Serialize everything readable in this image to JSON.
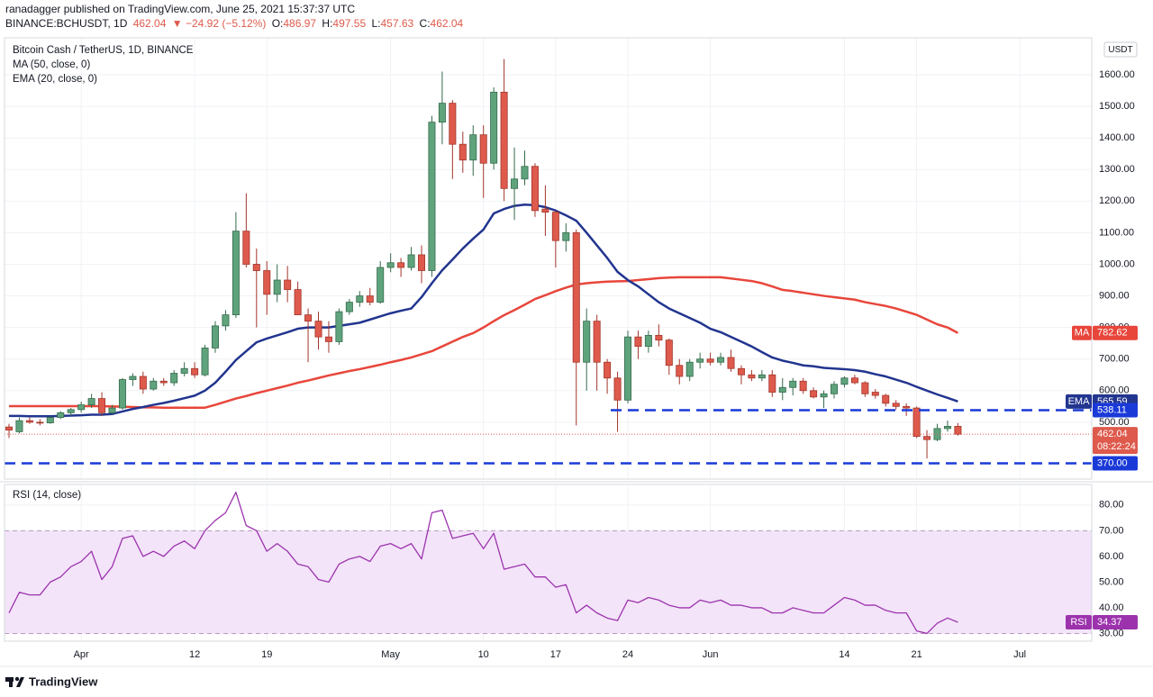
{
  "header": {
    "publisher": "ranadagger published on TradingView.com, June 25, 2021 15:37:37 UTC",
    "symbol": "BINANCE:BCHUSDT, 1D",
    "last": "462.04",
    "change": "▼ −24.92 (−5.12%)",
    "ohlc": [
      [
        "O:",
        "486.97"
      ],
      [
        "H:",
        "497.55"
      ],
      [
        "L:",
        "457.63"
      ],
      [
        "C:",
        "462.04"
      ]
    ]
  },
  "chart_data": [
    {
      "type": "candlestick",
      "title": "Bitcoin Cash / TetherUS, 1D, BINANCE",
      "unit": "USDT",
      "categories": [
        null,
        null,
        null,
        null,
        null,
        null,
        null,
        "Apr",
        null,
        null,
        null,
        null,
        null,
        null,
        null,
        null,
        null,
        null,
        "12",
        null,
        null,
        null,
        null,
        null,
        null,
        "19",
        null,
        null,
        null,
        null,
        null,
        null,
        null,
        null,
        null,
        null,
        null,
        "May",
        null,
        null,
        null,
        null,
        null,
        null,
        null,
        null,
        "10",
        null,
        null,
        null,
        null,
        null,
        null,
        "17",
        null,
        null,
        null,
        null,
        null,
        null,
        "24",
        null,
        null,
        null,
        null,
        null,
        null,
        null,
        "Jun",
        null,
        null,
        null,
        null,
        null,
        null,
        null,
        null,
        null,
        null,
        null,
        null,
        "14",
        null,
        null,
        null,
        null,
        null,
        null,
        "21",
        null,
        null,
        null,
        null,
        null,
        null,
        null,
        null,
        null,
        "Jul",
        null,
        null,
        null,
        null,
        null,
        null
      ],
      "open": [
        485,
        470,
        505,
        500,
        498,
        515,
        530,
        540,
        555,
        575,
        530,
        545,
        635,
        645,
        605,
        630,
        625,
        655,
        670,
        650,
        735,
        805,
        840,
        1105,
        1000,
        980,
        905,
        950,
        920,
        840,
        820,
        770,
        755,
        850,
        880,
        900,
        880,
        990,
        1005,
        990,
        1030,
        980,
        1450,
        1510,
        1380,
        1330,
        1410,
        1320,
        1545,
        1240,
        1270,
        1310,
        1175,
        1165,
        1075,
        1100,
        690,
        820,
        690,
        640,
        570,
        770,
        740,
        775,
        760,
        680,
        645,
        690,
        700,
        690,
        705,
        670,
        650,
        640,
        650,
        595,
        610,
        630,
        600,
        580,
        590,
        620,
        640,
        625,
        595,
        585,
        560,
        550,
        545,
        455,
        445,
        480,
        486.97,
        null,
        null,
        null,
        null,
        null,
        null,
        null,
        null,
        null,
        null,
        null,
        null
      ],
      "high": [
        495,
        515,
        515,
        510,
        520,
        535,
        545,
        565,
        590,
        595,
        555,
        640,
        655,
        660,
        640,
        640,
        665,
        690,
        690,
        745,
        820,
        855,
        1165,
        1225,
        1050,
        1010,
        1000,
        995,
        945,
        860,
        850,
        820,
        860,
        890,
        915,
        925,
        1010,
        1035,
        1020,
        1055,
        1060,
        1470,
        1610,
        1520,
        1420,
        1440,
        1440,
        1560,
        1650,
        1370,
        1360,
        1320,
        1250,
        1170,
        1130,
        1110,
        860,
        840,
        700,
        660,
        790,
        790,
        790,
        810,
        765,
        700,
        700,
        720,
        720,
        720,
        730,
        680,
        665,
        665,
        665,
        640,
        640,
        640,
        610,
        600,
        630,
        645,
        650,
        630,
        605,
        590,
        570,
        560,
        550,
        475,
        495,
        505,
        497.55,
        null,
        null,
        null,
        null,
        null,
        null,
        null,
        null,
        null,
        null,
        null,
        null
      ],
      "low": [
        450,
        465,
        495,
        490,
        495,
        510,
        520,
        530,
        545,
        520,
        525,
        540,
        615,
        590,
        600,
        615,
        615,
        645,
        640,
        645,
        720,
        790,
        830,
        990,
        800,
        840,
        880,
        880,
        840,
        690,
        730,
        720,
        745,
        840,
        865,
        870,
        875,
        975,
        960,
        980,
        940,
        960,
        1380,
        1270,
        1290,
        1280,
        1210,
        1300,
        1200,
        1140,
        1250,
        1150,
        1090,
        990,
        1040,
        490,
        600,
        600,
        590,
        470,
        560,
        700,
        720,
        740,
        650,
        620,
        630,
        670,
        680,
        680,
        660,
        620,
        630,
        630,
        580,
        570,
        585,
        590,
        575,
        545,
        575,
        610,
        620,
        580,
        575,
        550,
        540,
        520,
        450,
        385,
        440,
        470,
        457.63,
        null,
        null,
        null,
        null,
        null,
        null,
        null,
        null,
        null,
        null,
        null,
        null
      ],
      "close": [
        475,
        505,
        500,
        498,
        515,
        530,
        540,
        555,
        575,
        530,
        545,
        635,
        645,
        605,
        630,
        625,
        655,
        670,
        650,
        735,
        805,
        840,
        1105,
        1000,
        980,
        905,
        950,
        920,
        840,
        820,
        770,
        755,
        850,
        880,
        900,
        880,
        990,
        1005,
        990,
        1030,
        980,
        1450,
        1510,
        1380,
        1330,
        1410,
        1320,
        1545,
        1240,
        1270,
        1310,
        1170,
        1165,
        1075,
        1100,
        690,
        820,
        690,
        640,
        570,
        770,
        740,
        775,
        760,
        680,
        645,
        690,
        700,
        690,
        705,
        670,
        650,
        640,
        650,
        595,
        610,
        630,
        600,
        580,
        590,
        620,
        640,
        625,
        590,
        585,
        560,
        550,
        545,
        455,
        445,
        480,
        487,
        462.04,
        null,
        null,
        null,
        null,
        null,
        null,
        null,
        null,
        null,
        null,
        null,
        null
      ],
      "up_color": "#5fa37d",
      "up_border": "#356b4c",
      "down_color": "#de5a4c",
      "down_border": "#a3362b",
      "series": [
        {
          "name": "MA (50, close, 0)",
          "tag": "MA",
          "color": "#e8463b",
          "values": [
            551,
            551,
            551,
            551,
            551,
            551,
            551,
            551,
            551,
            551,
            550,
            549,
            548,
            547,
            547,
            546,
            546,
            546,
            546,
            546,
            555,
            565,
            575,
            583,
            592,
            600,
            608,
            616,
            625,
            632,
            640,
            648,
            655,
            662,
            668,
            675,
            682,
            690,
            697,
            705,
            715,
            725,
            740,
            755,
            770,
            782,
            800,
            820,
            839,
            855,
            872,
            890,
            902,
            915,
            926,
            936,
            940,
            943,
            945,
            946,
            947,
            950,
            953,
            956,
            958,
            959,
            959,
            959,
            959,
            959,
            955,
            951,
            947,
            940,
            930,
            919,
            915,
            910,
            905,
            900,
            896,
            892,
            888,
            880,
            874,
            868,
            860,
            850,
            840,
            825,
            810,
            800,
            782.62,
            null,
            null,
            null,
            null,
            null,
            null,
            null,
            null,
            null,
            null,
            null,
            null
          ]
        },
        {
          "name": "EMA (20, close, 0)",
          "tag": "EMA",
          "color": "#22358f",
          "values": [
            520,
            520,
            519,
            519,
            519,
            520,
            521,
            522,
            524,
            524,
            526,
            534,
            542,
            548,
            555,
            561,
            568,
            576,
            584,
            600,
            625,
            660,
            697,
            725,
            753,
            765,
            775,
            785,
            796,
            800,
            800,
            800,
            805,
            810,
            815,
            825,
            835,
            845,
            853,
            860,
            896,
            940,
            981,
            1015,
            1050,
            1081,
            1110,
            1161,
            1175,
            1185,
            1189,
            1187,
            1181,
            1170,
            1155,
            1138,
            1100,
            1060,
            1020,
            976,
            950,
            930,
            905,
            880,
            860,
            845,
            830,
            815,
            796,
            785,
            770,
            755,
            740,
            722,
            705,
            695,
            688,
            680,
            677,
            672,
            670,
            668,
            665,
            660,
            652,
            645,
            635,
            625,
            612,
            600,
            588,
            577,
            565.59,
            null,
            null,
            null,
            null,
            null,
            null,
            null,
            null,
            null,
            null,
            null,
            null
          ]
        }
      ],
      "levels": [
        538.11,
        {
          "value": 370,
          "label": "370.00"
        }
      ],
      "level_color": "#1a3ad8",
      "price_line_color": "#de5a4c",
      "countdown": "08:22:24",
      "ylim": [
        320,
        1717
      ],
      "yticks": [
        {
          "value": 500,
          "label": "500.00"
        },
        {
          "value": 600,
          "label": "600.00"
        },
        {
          "value": 700,
          "label": "700.00"
        },
        {
          "value": 800,
          "label": "800.00"
        },
        {
          "value": 900,
          "label": "900.00"
        },
        {
          "value": 1000,
          "label": "1000.00"
        },
        {
          "value": 1100,
          "label": "1100.00"
        },
        {
          "value": 1200,
          "label": "1200.00"
        },
        {
          "value": 1300,
          "label": "1300.00"
        },
        {
          "value": 1400,
          "label": "1400.00"
        },
        {
          "value": 1500,
          "label": "1500.00"
        },
        {
          "value": 1600,
          "label": "1600.00"
        }
      ],
      "grid": true
    },
    {
      "type": "line",
      "title": "RSI (14, close)",
      "tag": "RSI",
      "color": "#9c33ad",
      "values": [
        38,
        46,
        45,
        45,
        50,
        52,
        56,
        58,
        62,
        51,
        56,
        67,
        68,
        60,
        62,
        60,
        64,
        66,
        63,
        70,
        74,
        77,
        85,
        72,
        70,
        62,
        65,
        62,
        57,
        56,
        51,
        50,
        57,
        59,
        60,
        58,
        64,
        65,
        63,
        65,
        59,
        77,
        78,
        67,
        68,
        69,
        63,
        69,
        55,
        56,
        57,
        52,
        52,
        48,
        49,
        38,
        41,
        38,
        36,
        35,
        43,
        42,
        44,
        43,
        41,
        40,
        40,
        43,
        42,
        43,
        41,
        41,
        40,
        40,
        38,
        38,
        40,
        39,
        38,
        38,
        41,
        44,
        43,
        41,
        41,
        39,
        38,
        38,
        31,
        30,
        34,
        36,
        34.37,
        null,
        null,
        null,
        null,
        null,
        null,
        null,
        null,
        null,
        null,
        null,
        null
      ],
      "band": [
        30,
        70
      ],
      "band_color": "#f3e4f9",
      "ylim": [
        27,
        88
      ],
      "yticks": [
        {
          "value": 30,
          "label": "30.00"
        },
        {
          "value": 40,
          "label": "40.00"
        },
        {
          "value": 50,
          "label": "50.00"
        },
        {
          "value": 60,
          "label": "60.00"
        },
        {
          "value": 70,
          "label": "70.00"
        },
        {
          "value": 80,
          "label": "80.00"
        }
      ],
      "grid": true
    }
  ],
  "footer": {
    "brand": "TradingView"
  }
}
